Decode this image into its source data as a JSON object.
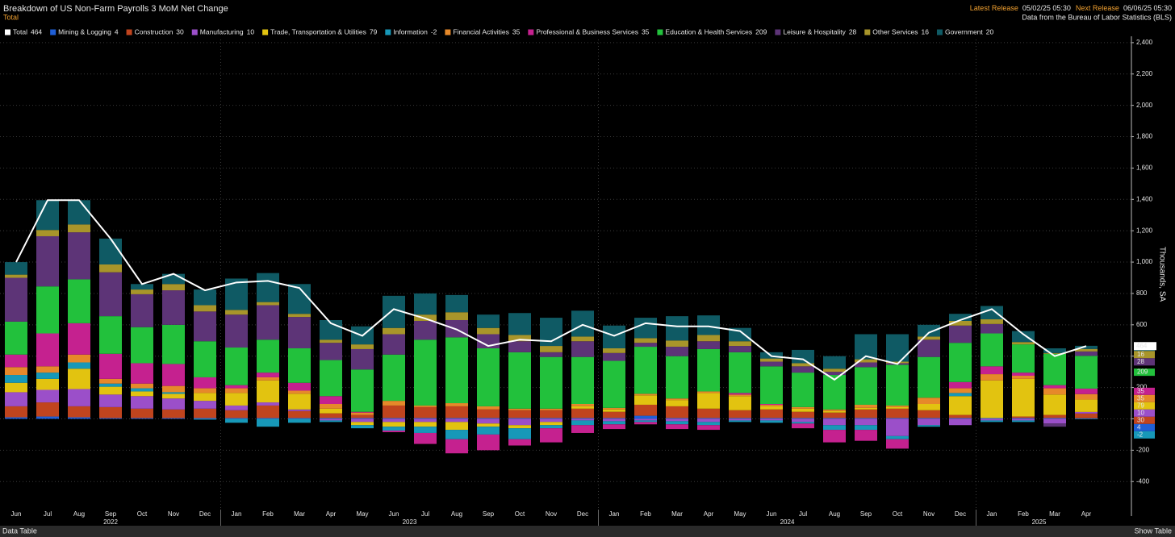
{
  "chart_data": {
    "type": "bar",
    "stacked": true,
    "title": "Breakdown of US Non-Farm Payrolls 3 MoM Net Change",
    "subtitle": "Total",
    "release": {
      "latest_label": "Latest Release",
      "latest": "05/02/25 05:30",
      "next_label": "Next Release",
      "next": "06/06/25 05:30"
    },
    "source": "Data from the Bureau of Labor Statistics (BLS)",
    "y_label": "Thousands, SA",
    "categories": [
      "Jun",
      "Jul",
      "Aug",
      "Sep",
      "Oct",
      "Nov",
      "Dec",
      "Jan",
      "Feb",
      "Mar",
      "Apr",
      "May",
      "Jun",
      "Jul",
      "Aug",
      "Sep",
      "Oct",
      "Nov",
      "Dec",
      "Jan",
      "Feb",
      "Mar",
      "Apr",
      "May",
      "Jun",
      "Jul",
      "Aug",
      "Sep",
      "Oct",
      "Nov",
      "Dec",
      "Jan",
      "Feb",
      "Mar",
      "Apr"
    ],
    "years": [
      "2022",
      "2023",
      "2024",
      "2025"
    ],
    "total": {
      "name": "Total",
      "color": "#ffffff",
      "values": [
        1000,
        1395,
        1395,
        1150,
        860,
        925,
        820,
        870,
        880,
        835,
        610,
        530,
        700,
        640,
        570,
        465,
        505,
        495,
        600,
        530,
        610,
        590,
        590,
        560,
        400,
        380,
        250,
        400,
        350,
        550,
        630,
        700,
        540,
        400,
        464
      ]
    },
    "series": [
      {
        "name": "Mining & Logging",
        "color": "#1f5fd6",
        "values": [
          10,
          15,
          10,
          5,
          5,
          5,
          5,
          5,
          5,
          5,
          5,
          5,
          5,
          5,
          5,
          5,
          5,
          5,
          5,
          5,
          20,
          5,
          5,
          5,
          5,
          5,
          5,
          5,
          5,
          5,
          5,
          5,
          5,
          5,
          4
        ]
      },
      {
        "name": "Construction",
        "color": "#c0441e",
        "values": [
          70,
          90,
          70,
          70,
          60,
          55,
          60,
          50,
          80,
          45,
          30,
          20,
          80,
          70,
          75,
          55,
          50,
          50,
          60,
          40,
          70,
          75,
          60,
          50,
          55,
          40,
          35,
          55,
          60,
          50,
          20,
          0,
          10,
          20,
          30
        ]
      },
      {
        "name": "Manufacturing",
        "color": "#9b4fc9",
        "values": [
          90,
          80,
          110,
          80,
          80,
          70,
          50,
          30,
          20,
          10,
          -10,
          -20,
          -20,
          -20,
          -20,
          -30,
          -40,
          -20,
          -10,
          -15,
          -10,
          -15,
          -20,
          -10,
          -10,
          -20,
          -40,
          -40,
          -110,
          -40,
          -40,
          -10,
          -10,
          -30,
          10
        ]
      },
      {
        "name": "Trade, Transportation & Utilities",
        "color": "#e2c310",
        "values": [
          60,
          70,
          130,
          50,
          30,
          30,
          50,
          80,
          140,
          100,
          30,
          -20,
          -30,
          -30,
          -50,
          -20,
          -20,
          -20,
          15,
          15,
          60,
          40,
          100,
          90,
          20,
          20,
          10,
          10,
          10,
          40,
          120,
          240,
          240,
          130,
          79
        ]
      },
      {
        "name": "Information",
        "color": "#1798b8",
        "values": [
          50,
          40,
          40,
          20,
          20,
          10,
          -5,
          -25,
          -50,
          -25,
          -10,
          -20,
          -25,
          -40,
          -60,
          -50,
          -70,
          -20,
          -30,
          -20,
          -10,
          -20,
          -20,
          -10,
          -15,
          -10,
          -30,
          -30,
          -20,
          -10,
          20,
          -10,
          -10,
          0,
          -2
        ]
      },
      {
        "name": "Financial Activities",
        "color": "#e6892a",
        "values": [
          50,
          40,
          50,
          30,
          30,
          40,
          30,
          30,
          20,
          20,
          30,
          15,
          30,
          10,
          20,
          20,
          10,
          10,
          15,
          10,
          10,
          10,
          10,
          10,
          10,
          10,
          10,
          20,
          10,
          40,
          30,
          40,
          20,
          40,
          35
        ]
      },
      {
        "name": "Professional & Business Services",
        "color": "#c5218f",
        "values": [
          80,
          210,
          200,
          160,
          130,
          140,
          70,
          20,
          30,
          50,
          50,
          5,
          -10,
          -70,
          -90,
          -100,
          -40,
          -90,
          -50,
          -30,
          -15,
          -30,
          -30,
          10,
          5,
          -30,
          -80,
          -70,
          -60,
          0,
          40,
          50,
          20,
          20,
          35
        ]
      },
      {
        "name": "Education & Health Services",
        "color": "#22c13c",
        "values": [
          210,
          300,
          280,
          240,
          230,
          250,
          230,
          240,
          210,
          220,
          230,
          270,
          295,
          420,
          420,
          370,
          360,
          330,
          300,
          300,
          300,
          270,
          270,
          260,
          240,
          220,
          220,
          240,
          260,
          260,
          250,
          210,
          180,
          200,
          209
        ]
      },
      {
        "name": "Leisure & Hospitality",
        "color": "#5d3477",
        "values": [
          280,
          320,
          300,
          280,
          210,
          220,
          190,
          210,
          220,
          200,
          110,
          130,
          130,
          120,
          110,
          90,
          70,
          30,
          100,
          50,
          25,
          60,
          50,
          40,
          30,
          40,
          20,
          30,
          10,
          110,
          110,
          60,
          0,
          -20,
          28
        ]
      },
      {
        "name": "Other Services",
        "color": "#a8952a",
        "values": [
          20,
          40,
          50,
          50,
          30,
          40,
          40,
          30,
          20,
          20,
          20,
          30,
          40,
          40,
          50,
          40,
          40,
          40,
          30,
          30,
          30,
          40,
          40,
          30,
          20,
          20,
          20,
          20,
          10,
          20,
          30,
          30,
          15,
          5,
          16
        ]
      },
      {
        "name": "Government",
        "color": "#0f5a64",
        "values": [
          80,
          190,
          155,
          165,
          35,
          65,
          100,
          200,
          185,
          190,
          125,
          115,
          205,
          135,
          110,
          85,
          140,
          180,
          165,
          145,
          130,
          155,
          125,
          85,
          40,
          85,
          80,
          160,
          175,
          75,
          45,
          85,
          70,
          30,
          20
        ]
      }
    ],
    "ylim": [
      -620,
      2420
    ],
    "yticks": [
      -400,
      -200,
      0,
      200,
      400,
      600,
      800,
      {
        "value": 1000,
        "label": "1,000"
      },
      {
        "value": 1200,
        "label": "1,200"
      },
      {
        "value": 1400,
        "label": "1,400"
      },
      {
        "value": 1600,
        "label": "1,600"
      },
      {
        "value": 1800,
        "label": "1,800"
      },
      {
        "value": 2000,
        "label": "2,000"
      },
      {
        "value": 2200,
        "label": "2,200"
      },
      {
        "value": 2400,
        "label": "2,400"
      }
    ],
    "grid": true
  },
  "footer": {
    "left": "Data Table",
    "right": "Show Table"
  }
}
